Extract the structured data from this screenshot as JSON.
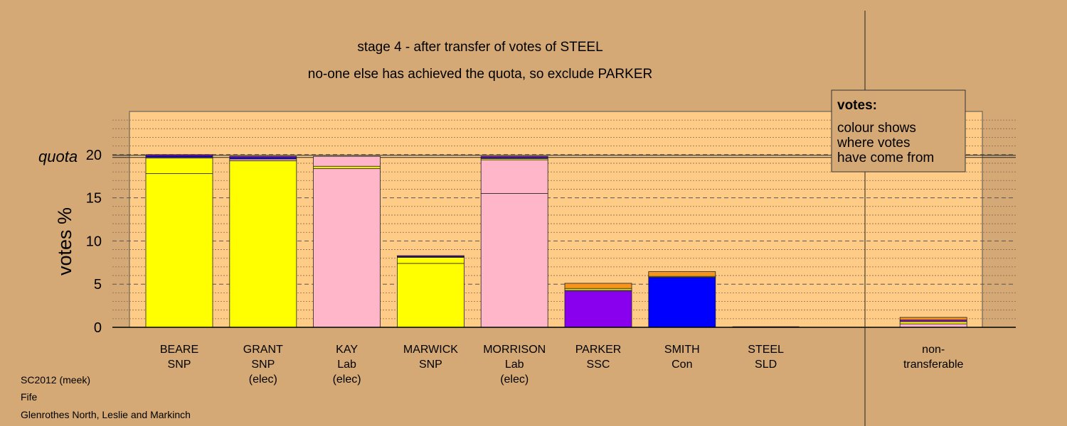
{
  "chart_data": {
    "type": "stacked-bar",
    "title": "stage 4 - after transfer of votes of STEEL",
    "subtitle": "no-one else has achieved the quota, so exclude PARKER",
    "ylabel": "votes %",
    "quota_label": "quota",
    "quota": 19.8,
    "ylim": [
      0,
      25
    ],
    "yticks": [
      0,
      5,
      10,
      15,
      20
    ],
    "grid": true,
    "legend": {
      "title": "votes:",
      "lines": [
        "colour shows",
        "where votes",
        "have come from"
      ],
      "position": "top-right"
    },
    "candidates": [
      {
        "name": "BEARE",
        "party": "SNP",
        "note": "",
        "segments": [
          {
            "from": "SNP",
            "value": 17.8
          },
          {
            "from": "SNP",
            "value": 1.8
          },
          {
            "from": "Lab",
            "value": 0.1
          },
          {
            "from": "Con",
            "value": 0.15
          },
          {
            "from": "SSC",
            "value": 0.15
          }
        ]
      },
      {
        "name": "GRANT",
        "party": "SNP",
        "note": "(elec)",
        "segments": [
          {
            "from": "SNP",
            "value": 19.3
          },
          {
            "from": "Lab",
            "value": 0.2
          },
          {
            "from": "Con",
            "value": 0.15
          },
          {
            "from": "SSC",
            "value": 0.15
          }
        ]
      },
      {
        "name": "KAY",
        "party": "Lab",
        "note": "(elec)",
        "segments": [
          {
            "from": "Lab",
            "value": 18.4
          },
          {
            "from": "SNP",
            "value": 0.25
          },
          {
            "from": "Lab",
            "value": 1.15
          }
        ]
      },
      {
        "name": "MARWICK",
        "party": "SNP",
        "note": "",
        "segments": [
          {
            "from": "SNP",
            "value": 7.4
          },
          {
            "from": "SNP",
            "value": 0.7
          },
          {
            "from": "Con",
            "value": 0.1
          },
          {
            "from": "SSC",
            "value": 0.1
          }
        ]
      },
      {
        "name": "MORRISON",
        "party": "Lab",
        "note": "(elec)",
        "segments": [
          {
            "from": "Lab",
            "value": 15.5
          },
          {
            "from": "Lab",
            "value": 3.9
          },
          {
            "from": "SNP",
            "value": 0.15
          },
          {
            "from": "Con",
            "value": 0.1
          },
          {
            "from": "SSC",
            "value": 0.15
          }
        ]
      },
      {
        "name": "PARKER",
        "party": "SSC",
        "note": "",
        "segments": [
          {
            "from": "SSC",
            "value": 4.2
          },
          {
            "from": "Lab",
            "value": 0.1
          },
          {
            "from": "SNP",
            "value": 0.2
          },
          {
            "from": "SLD",
            "value": 0.6
          }
        ]
      },
      {
        "name": "SMITH",
        "party": "Con",
        "note": "",
        "segments": [
          {
            "from": "Con",
            "value": 5.8
          },
          {
            "from": "SNP",
            "value": 0.1
          },
          {
            "from": "SLD",
            "value": 0.55
          }
        ]
      },
      {
        "name": "STEEL",
        "party": "SLD",
        "note": "",
        "segments": []
      },
      {
        "name": "",
        "party": "",
        "note": "",
        "segments": []
      },
      {
        "name": "non-",
        "party": "transferable",
        "note": "",
        "segments": [
          {
            "from": "Lab",
            "value": 0.4
          },
          {
            "from": "SNP",
            "value": 0.25
          },
          {
            "from": "SSC",
            "value": 0.2
          },
          {
            "from": "SLD",
            "value": 0.3
          }
        ]
      }
    ],
    "colors": {
      "SNP": "#ffff00",
      "Lab": "#ffb6c8",
      "Con": "#0000ff",
      "SSC": "#8800ee",
      "SLD": "#f7941d",
      "background": "#d4a976",
      "plot": "#ffcc88"
    }
  },
  "footer": {
    "line1": "SC2012 (meek)",
    "line2": "Fife",
    "line3": "Glenrothes North, Leslie and Markinch"
  }
}
